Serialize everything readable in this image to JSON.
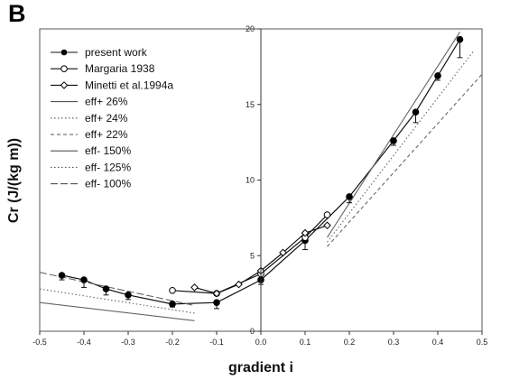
{
  "panel_label": "B",
  "chart_data": {
    "type": "line",
    "title": "",
    "xlabel": "gradient i",
    "ylabel": "Cr (J/(kg m))",
    "xlim": [
      -0.5,
      0.5
    ],
    "ylim": [
      0,
      20
    ],
    "x_ticks": [
      "-0.5",
      "-0.4",
      "-0.3",
      "-0.2",
      "-0.1",
      "0.0",
      "0.1",
      "0.2",
      "0.3",
      "0.4",
      "0.5"
    ],
    "y_ticks": [
      "0",
      "5",
      "10",
      "15",
      "20"
    ],
    "grid": false,
    "legend_position": "top-left",
    "series": [
      {
        "name": "present work",
        "marker": "filled-circle",
        "line": "solid",
        "x": [
          -0.45,
          -0.4,
          -0.35,
          -0.3,
          -0.2,
          -0.1,
          0.0,
          0.1,
          0.2,
          0.3,
          0.35,
          0.4,
          0.45
        ],
        "y": [
          3.7,
          3.4,
          2.8,
          2.4,
          1.8,
          1.9,
          3.4,
          6.0,
          8.9,
          12.6,
          14.5,
          16.9,
          19.3
        ],
        "err": [
          0.3,
          0.5,
          0.4,
          0.3,
          0.2,
          0.4,
          0.3,
          0.6,
          0.4,
          0.3,
          0.7,
          0.3,
          1.2
        ]
      },
      {
        "name": "Margaria 1938",
        "marker": "open-circle",
        "line": "solid",
        "x": [
          -0.2,
          -0.1,
          0.0,
          0.1,
          0.15
        ],
        "y": [
          2.7,
          2.5,
          3.8,
          6.2,
          7.7
        ]
      },
      {
        "name": "Minetti et al.1994a",
        "marker": "open-diamond",
        "line": "solid",
        "x": [
          -0.15,
          -0.1,
          -0.05,
          0.0,
          0.05,
          0.1,
          0.15
        ],
        "y": [
          2.9,
          2.5,
          3.1,
          4.0,
          5.2,
          6.5,
          7.0
        ]
      },
      {
        "name": "eff+ 26%",
        "marker": "none",
        "line": "solid",
        "x": [
          0.15,
          0.45
        ],
        "y": [
          6.2,
          19.8
        ]
      },
      {
        "name": "eff+ 24%",
        "marker": "none",
        "line": "dotted",
        "x": [
          0.15,
          0.48
        ],
        "y": [
          5.9,
          18.5
        ]
      },
      {
        "name": "eff+ 22%",
        "marker": "none",
        "line": "dash-short",
        "x": [
          0.15,
          0.5
        ],
        "y": [
          5.6,
          17.0
        ]
      },
      {
        "name": "eff- 150%",
        "marker": "none",
        "line": "solid",
        "x": [
          -0.5,
          -0.15
        ],
        "y": [
          1.9,
          0.7
        ]
      },
      {
        "name": "eff- 125%",
        "marker": "none",
        "line": "dotted",
        "x": [
          -0.5,
          -0.15
        ],
        "y": [
          2.8,
          1.2
        ]
      },
      {
        "name": "eff- 100%",
        "marker": "none",
        "line": "dash-long",
        "x": [
          -0.5,
          -0.15
        ],
        "y": [
          3.9,
          1.7
        ]
      }
    ]
  }
}
